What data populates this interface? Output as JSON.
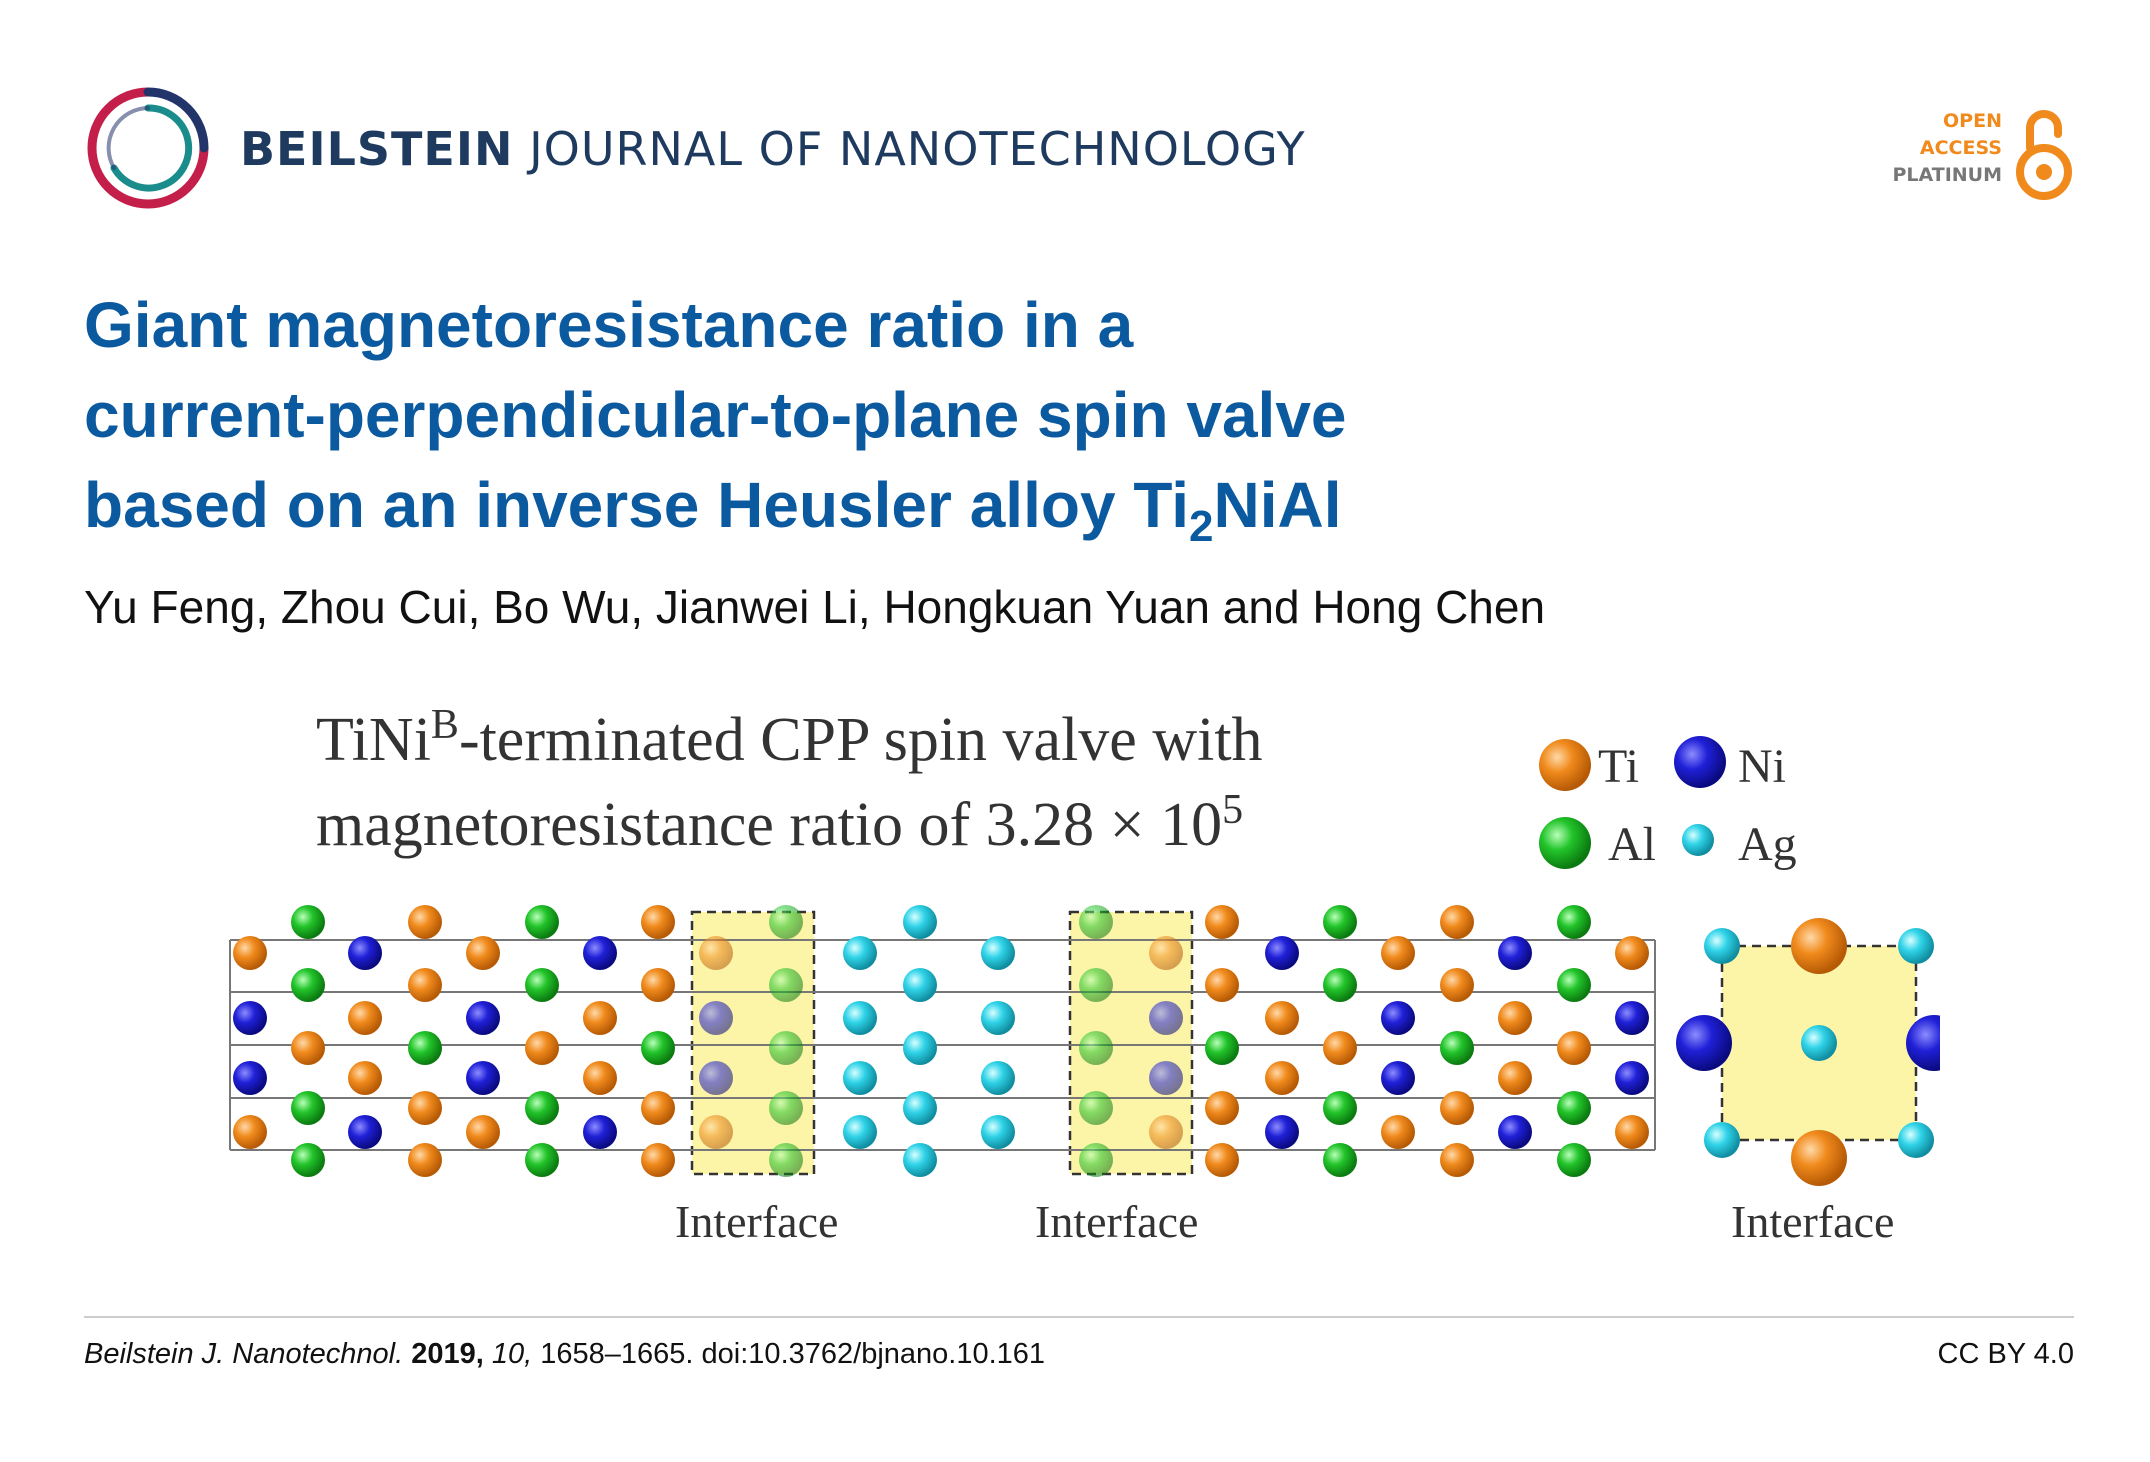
{
  "header": {
    "journal_strong": "BEILSTEIN",
    "journal_rest": "JOURNAL OF NANOTECHNOLOGY",
    "badge": {
      "line1": "OPEN",
      "line2": "ACCESS",
      "line3": "PLATINUM"
    }
  },
  "article": {
    "title_line1": "Giant magnetoresistance ratio in a",
    "title_line2": "current-perpendicular-to-plane spin valve",
    "title_line3_pre": "based on an inverse Heusler alloy Ti",
    "title_sub": "2",
    "title_line3_post": "NiAl",
    "authors": "Yu Feng, Zhou Cui, Bo Wu, Jianwei Li, Hongkuan Yuan and Hong Chen"
  },
  "figure": {
    "caption_line1_a": "TiNi",
    "caption_line1_sup": "B",
    "caption_line1_b": "-terminated CPP spin valve with",
    "caption_line2_a": "magnetoresistance ratio of 3.28 × 10",
    "caption_line2_sup": "5",
    "legend": [
      {
        "label": "Ti",
        "color": "#c8580e"
      },
      {
        "label": "Ni",
        "color": "#2a2ff0"
      },
      {
        "label": "Al",
        "color": "#17c21d"
      },
      {
        "label": "Ag",
        "color": "#33d9f0"
      }
    ],
    "interface_labels": [
      "Interface",
      "Interface",
      "Interface"
    ],
    "colors": {
      "ti_atom": "#e87c18",
      "ni_atom": "#1a1ad0",
      "al_atom": "#22c42a",
      "ag_atom": "#2fd3e8",
      "interface_fill": "#fcf5a8"
    }
  },
  "footer": {
    "journal_abbrev": "Beilstein J. Nanotechnol.",
    "year": "2019,",
    "volume": "10,",
    "pages_doi": "1658–1665. doi:10.3762/bjnano.10.161",
    "license": "CC BY 4.0"
  }
}
